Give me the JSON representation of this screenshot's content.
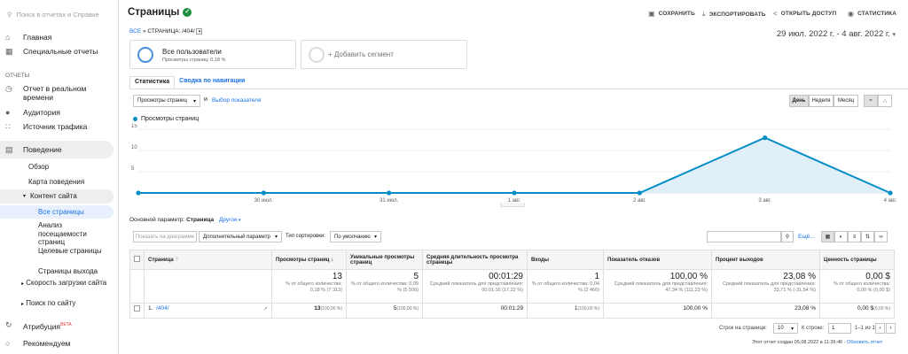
{
  "sidebar": {
    "search_placeholder": "Поиск в отчетах и Справке",
    "home": "Главная",
    "custom": "Специальные отчеты",
    "section": "ОТЧЕТЫ",
    "realtime": "Отчет в реальном времени",
    "audience": "Аудитория",
    "acquisition": "Источник трафика",
    "behavior": "Поведение",
    "overview": "Обзор",
    "flow": "Карта поведения",
    "site_content": "Контент сайта",
    "all_pages": "Все страницы",
    "content_drill": "Анализ посещаемости страниц",
    "landing": "Целевые страницы",
    "exit": "Страницы выхода",
    "speed": "Скорость загрузки сайта",
    "site_search": "Поиск по сайту",
    "attribution": "Атрибуция",
    "beta": "BETA",
    "discover": "Рекомендуем"
  },
  "header": {
    "title": "Страницы",
    "save": "СОХРАНИТЬ",
    "export": "ЭКСПОРТИРОВАТЬ",
    "share": "ОТКРЫТЬ ДОСТУП",
    "insights": "СТАТИСТИКА"
  },
  "breadcrumb": {
    "all": "ВСЕ",
    "sep": "»",
    "page": "СТРАНИЦА: /404/"
  },
  "date_range": "29 июл. 2022 г. - 4 авг. 2022 г.",
  "segments": {
    "name": "Все пользователи",
    "sub": "Просмотры страниц: 0,18 %",
    "add": "+ Добавить сегмент"
  },
  "tabs": {
    "stats": "Статистика",
    "nav": "Сводка по навигации"
  },
  "chart_controls": {
    "metric": "Просмотры страниц",
    "and": "и",
    "choose": "Выбор показателя",
    "day": "День",
    "week": "Неделя",
    "month": "Месяц"
  },
  "chart_data": {
    "type": "area",
    "series": [
      {
        "name": "Просмотры страниц",
        "values": [
          0,
          0,
          0,
          0,
          0,
          13,
          0
        ]
      }
    ],
    "categories": [
      "",
      "30 июл.",
      "31 июл.",
      "1 авг.",
      "2 авг.",
      "3 авг.",
      "4 авг."
    ],
    "ylim": [
      0,
      15
    ],
    "yticks": [
      5,
      10,
      15
    ],
    "grid": true,
    "colors": {
      "line": "#058dc7",
      "fill": "#e1eff9"
    }
  },
  "params": {
    "label": "Основной параметр:",
    "value": "Страница",
    "other": "Другое"
  },
  "table_controls": {
    "plot": "Показать на диаграмме",
    "secondary": "Дополнительный параметр",
    "sort_label": "Тип сортировки:",
    "sort_value": "По умолчанию",
    "more": "Ещё..."
  },
  "table": {
    "headers": [
      "Страница",
      "Просмотры страниц",
      "Уникальные просмотры страниц",
      "Средняя длительность просмотра страницы",
      "Входы",
      "Показатель отказов",
      "Процент выходов",
      "Ценность страницы"
    ],
    "totals": [
      {
        "value": "13",
        "sub": "% от общего количества: 0,18 % (7 313)"
      },
      {
        "value": "5",
        "sub": "% от общего количества: 0,09 % (5 506)"
      },
      {
        "value": "00:01:29",
        "sub": "Средний показатель для представления: 00:01:16 (17,22 %)"
      },
      {
        "value": "1",
        "sub": "% от общего количества: 0,04 % (2 466)"
      },
      {
        "value": "100,00 %",
        "sub": "Средний показатель для представления: 47,34 % (111,23 %)"
      },
      {
        "value": "23,08 %",
        "sub": "Средний показатель для представления: 33,71 % (-31,54 %)"
      },
      {
        "value": "0,00 $",
        "sub": "% от общего количества: 0,00 % (0,00 $)"
      }
    ],
    "row": {
      "index": "1.",
      "page": "/404/",
      "pv": "13",
      "pv_pct": "(100,00 %)",
      "upv": "5",
      "upv_pct": "(100,00 %)",
      "avg": "00:01:29",
      "ent": "1",
      "ent_pct": "(100,00 %)",
      "bounce": "100,00 %",
      "exit": "23,08 %",
      "val": "0,00 $",
      "val_pct": "(0,00 %)"
    }
  },
  "footer": {
    "rows_label": "Строк на странице:",
    "rows_value": "10",
    "goto_label": "К строке:",
    "goto_value": "1",
    "range": "1–1 из 1",
    "created": "Этот отчет создан 05.08.2022 в 11:36:46 -",
    "refresh": "Обновить отчет"
  }
}
